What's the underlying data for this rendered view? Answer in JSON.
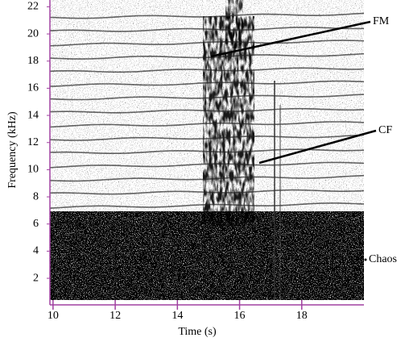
{
  "chart_data": {
    "type": "spectrogram",
    "xlabel": "Time (s)",
    "ylabel": "Frequency (kHz)",
    "xlim": [
      9.9,
      20
    ],
    "xticks": [
      10,
      12,
      14,
      16,
      18
    ],
    "ylim": [
      0.4,
      22.5
    ],
    "yticks": [
      2,
      4,
      6,
      8,
      10,
      12,
      14,
      16,
      18,
      20,
      22
    ],
    "annotations": [
      "FM",
      "CF",
      "Chaos"
    ]
  }
}
